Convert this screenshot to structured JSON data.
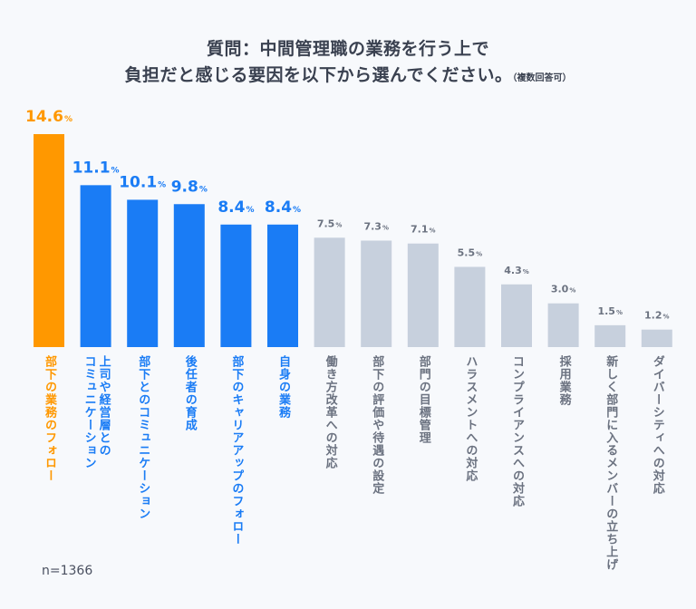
{
  "title": {
    "line1": "質問：中間管理職の業務を行う上で",
    "line2": "負担だと感じる要因を以下から選んでください。",
    "note": "（複数回答可）"
  },
  "footer": {
    "sample_size": "n=1366"
  },
  "colors": {
    "highlight": "#ff9800",
    "primary": "#1a7cf5",
    "muted_bar": "#c7d0dd",
    "muted_text": "#6b7280"
  },
  "chart_data": {
    "type": "bar",
    "title": "質問：中間管理職の業務を行う上で負担だと感じる要因を以下から選んでください。（複数回答可）",
    "xlabel": "",
    "ylabel": "",
    "unit": "%",
    "ylim": [
      0,
      15
    ],
    "grid": false,
    "categories": [
      "部下の業務のフォロー",
      "上司や経営層とのコミュニケーション",
      "部下とのコミュニケーション",
      "後任者の育成",
      "部下のキャリアアップのフォロー",
      "自身の業務",
      "働き方改革への対応",
      "部下の評価や待遇の設定",
      "部門の目標管理",
      "ハラスメントへの対応",
      "コンプライアンスへの対応",
      "採用業務",
      "新しく部門に入るメンバーの立ち上げ",
      "ダイバーシティへの対応"
    ],
    "label_lines": [
      [
        "部下の業務のフォロー"
      ],
      [
        "上司や経営層との",
        "コミュニケーション"
      ],
      [
        "部下とのコミュニケーション"
      ],
      [
        "後任者の育成"
      ],
      [
        "部下のキャリアアップのフォロー"
      ],
      [
        "自身の業務"
      ],
      [
        "働き方改革への対応"
      ],
      [
        "部下の評価や待遇の設定"
      ],
      [
        "部門の目標管理"
      ],
      [
        "ハラスメントへの対応"
      ],
      [
        "コンプライアンスへの対応"
      ],
      [
        "採用業務"
      ],
      [
        "新しく部門に入るメンバーの立ち上げ"
      ],
      [
        "ダイバーシティへの対応"
      ]
    ],
    "values": [
      14.6,
      11.1,
      10.1,
      9.8,
      8.4,
      8.4,
      7.5,
      7.3,
      7.1,
      5.5,
      4.3,
      3.0,
      1.5,
      1.2
    ],
    "value_labels": [
      "14.6",
      "11.1",
      "10.1",
      "9.8",
      "8.4",
      "8.4",
      "7.5",
      "7.3",
      "7.1",
      "5.5",
      "4.3",
      "3.0",
      "1.5",
      "1.2"
    ],
    "color_groups": [
      "highlight",
      "primary",
      "primary",
      "primary",
      "primary",
      "primary",
      "muted",
      "muted",
      "muted",
      "muted",
      "muted",
      "muted",
      "muted",
      "muted"
    ]
  }
}
